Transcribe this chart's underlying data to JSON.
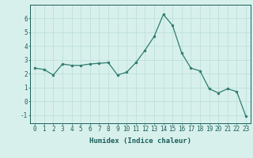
{
  "x": [
    0,
    1,
    2,
    3,
    4,
    5,
    6,
    7,
    8,
    9,
    10,
    11,
    12,
    13,
    14,
    15,
    16,
    17,
    18,
    19,
    20,
    21,
    22,
    23
  ],
  "y": [
    2.4,
    2.3,
    1.9,
    2.7,
    2.6,
    2.6,
    2.7,
    2.75,
    2.8,
    1.9,
    2.1,
    2.8,
    3.7,
    4.7,
    6.3,
    5.5,
    3.5,
    2.4,
    2.2,
    0.9,
    0.6,
    0.9,
    0.7,
    -1.1
  ],
  "line_color": "#2e7d6e",
  "marker": "o",
  "marker_size": 2,
  "bg_color": "#d8f0ec",
  "grid_color": "#b8ddd8",
  "xlabel": "Humidex (Indice chaleur)",
  "xlim": [
    -0.5,
    23.5
  ],
  "ylim": [
    -1.6,
    7.0
  ],
  "yticks": [
    -1,
    0,
    1,
    2,
    3,
    4,
    5,
    6
  ],
  "xticks": [
    0,
    1,
    2,
    3,
    4,
    5,
    6,
    7,
    8,
    9,
    10,
    11,
    12,
    13,
    14,
    15,
    16,
    17,
    18,
    19,
    20,
    21,
    22,
    23
  ],
  "font_color": "#1a5f5a",
  "tick_fontsize": 5.5,
  "label_fontsize": 6.5
}
